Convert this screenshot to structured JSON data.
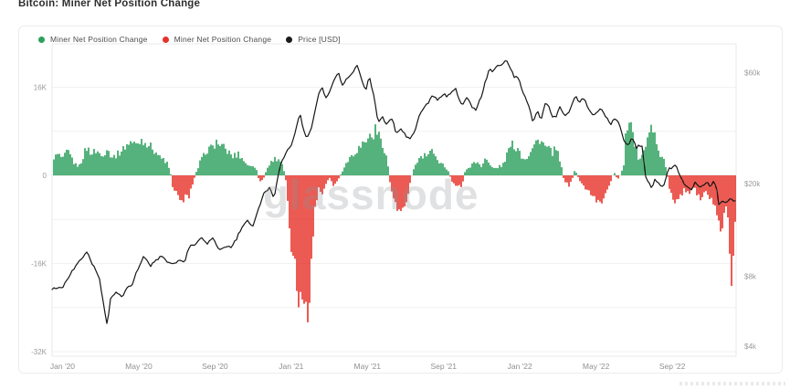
{
  "page": {
    "title": "Bitcoin: Miner Net Position Change"
  },
  "legend": [
    {
      "label": "Miner Net Position Change",
      "color": "#2ca05c"
    },
    {
      "label": "Miner Net Position Change",
      "color": "#e63329"
    },
    {
      "label": "Price [USD]",
      "color": "#1b1b1b"
    }
  ],
  "watermark": "glassnode",
  "chart_data": {
    "type": "combo-bar-line",
    "title": "Bitcoin: Miner Net Position Change",
    "x_unit": "months_since_2020_01",
    "x_axis": {
      "range_months": [
        -0.55,
        35.35
      ],
      "ticks": [
        {
          "m": 0,
          "label": "Jan '20"
        },
        {
          "m": 4,
          "label": "May '20"
        },
        {
          "m": 8,
          "label": "Sep '20"
        },
        {
          "m": 12,
          "label": "Jan '21"
        },
        {
          "m": 16,
          "label": "May '21"
        },
        {
          "m": 20,
          "label": "Sep '21"
        },
        {
          "m": 24,
          "label": "Jan '22"
        },
        {
          "m": 28,
          "label": "May '22"
        },
        {
          "m": 32,
          "label": "Sep '22"
        }
      ]
    },
    "y_left": {
      "unit": "BTC (thousands)",
      "gridline_step_k": 8,
      "range_k": [
        -33,
        24
      ],
      "ticks": [
        {
          "v": 16,
          "label": "16K"
        },
        {
          "v": 0,
          "label": "0"
        },
        {
          "v": -16,
          "label": "-16K"
        },
        {
          "v": -32,
          "label": "-32K"
        }
      ]
    },
    "y_right": {
      "unit": "USD",
      "scale": "log",
      "ticks": [
        {
          "usd_k": 60,
          "label": "$60k"
        },
        {
          "usd_k": 20,
          "label": "$20k"
        },
        {
          "usd_k": 8,
          "label": "$8k"
        },
        {
          "usd_k": 4,
          "label": "$4k"
        }
      ]
    },
    "series": [
      {
        "name": "Miner Net Position Change",
        "type": "bar",
        "unit": "K BTC",
        "color_positive": "#2ca05c",
        "color_negative": "#e63329",
        "points": [
          [
            -0.5,
            3.2
          ],
          [
            -0.3,
            3.8
          ],
          [
            0,
            3.0
          ],
          [
            0.2,
            4.5
          ],
          [
            0.4,
            3.5
          ],
          [
            0.6,
            2.0
          ],
          [
            0.8,
            1.5
          ],
          [
            1.0,
            3.0
          ],
          [
            1.2,
            5.0
          ],
          [
            1.5,
            4.0
          ],
          [
            1.8,
            4.5
          ],
          [
            2.0,
            3.5
          ],
          [
            2.3,
            4.8
          ],
          [
            2.6,
            3.2
          ],
          [
            2.9,
            4.0
          ],
          [
            3.2,
            5.0
          ],
          [
            3.5,
            6.2
          ],
          [
            3.8,
            5.5
          ],
          [
            4.1,
            6.5
          ],
          [
            4.4,
            5.8
          ],
          [
            4.7,
            5.0
          ],
          [
            5.0,
            3.5
          ],
          [
            5.2,
            3.0
          ],
          [
            5.4,
            2.5
          ],
          [
            5.6,
            1.0
          ],
          [
            5.75,
            -2.0
          ],
          [
            6.0,
            -3.5
          ],
          [
            6.3,
            -4.5
          ],
          [
            6.6,
            -3.8
          ],
          [
            6.8,
            -1.5
          ],
          [
            7.0,
            0.8
          ],
          [
            7.2,
            2.5
          ],
          [
            7.5,
            4.5
          ],
          [
            7.8,
            5.0
          ],
          [
            8.0,
            6.0
          ],
          [
            8.3,
            5.5
          ],
          [
            8.6,
            4.5
          ],
          [
            8.9,
            3.5
          ],
          [
            9.2,
            4.0
          ],
          [
            9.5,
            2.5
          ],
          [
            9.8,
            1.5
          ],
          [
            10.1,
            1.8
          ],
          [
            10.3,
            -1.2
          ],
          [
            10.5,
            -0.8
          ],
          [
            10.7,
            1.5
          ],
          [
            11.0,
            2.8
          ],
          [
            11.3,
            3.2
          ],
          [
            11.5,
            2.0
          ],
          [
            11.7,
            -1.0
          ],
          [
            11.85,
            -8.0
          ],
          [
            12.0,
            -13.0
          ],
          [
            12.2,
            -18.0
          ],
          [
            12.4,
            -22.0
          ],
          [
            12.6,
            -25.0
          ],
          [
            12.8,
            -28.0
          ],
          [
            12.95,
            -20.0
          ],
          [
            13.1,
            -12.0
          ],
          [
            13.25,
            -5.0
          ],
          [
            13.4,
            -2.5
          ],
          [
            13.6,
            -3.5
          ],
          [
            13.8,
            -1.5
          ],
          [
            14.0,
            -0.5
          ],
          [
            14.2,
            -2.0
          ],
          [
            14.4,
            -0.8
          ],
          [
            14.6,
            0.5
          ],
          [
            14.9,
            2.5
          ],
          [
            15.2,
            4.0
          ],
          [
            15.5,
            5.0
          ],
          [
            15.8,
            6.0
          ],
          [
            16.1,
            7.0
          ],
          [
            16.4,
            8.2
          ],
          [
            16.7,
            6.5
          ],
          [
            17.0,
            3.0
          ],
          [
            17.2,
            -2.5
          ],
          [
            17.4,
            -5.0
          ],
          [
            17.7,
            -6.5
          ],
          [
            18.0,
            -4.5
          ],
          [
            18.2,
            -1.5
          ],
          [
            18.4,
            1.5
          ],
          [
            18.7,
            3.0
          ],
          [
            19.0,
            3.5
          ],
          [
            19.3,
            4.3
          ],
          [
            19.6,
            3.0
          ],
          [
            19.9,
            2.2
          ],
          [
            20.2,
            1.0
          ],
          [
            20.4,
            -1.2
          ],
          [
            20.7,
            -1.8
          ],
          [
            20.9,
            -2.5
          ],
          [
            21.1,
            0.8
          ],
          [
            21.4,
            1.8
          ],
          [
            21.7,
            2.5
          ],
          [
            22.0,
            1.5
          ],
          [
            22.1,
            3.5
          ],
          [
            22.4,
            1.8
          ],
          [
            22.7,
            1.2
          ],
          [
            23.1,
            2.0
          ],
          [
            23.5,
            5.6
          ],
          [
            23.9,
            5.0
          ],
          [
            24.1,
            3.0
          ],
          [
            24.3,
            3.2
          ],
          [
            24.6,
            4.8
          ],
          [
            25.0,
            6.8
          ],
          [
            25.3,
            5.2
          ],
          [
            25.6,
            4.2
          ],
          [
            25.9,
            4.6
          ],
          [
            26.1,
            2.2
          ],
          [
            26.3,
            -1.4
          ],
          [
            26.6,
            -1.8
          ],
          [
            26.85,
            0.9
          ],
          [
            27.1,
            -0.8
          ],
          [
            27.5,
            -2.8
          ],
          [
            28.0,
            -4.6
          ],
          [
            28.3,
            -4.6
          ],
          [
            28.55,
            -2.8
          ],
          [
            28.75,
            -1.0
          ],
          [
            28.9,
            0.7
          ],
          [
            29.1,
            -0.9
          ],
          [
            29.3,
            0.6
          ],
          [
            29.45,
            2.2
          ],
          [
            29.55,
            9.4
          ],
          [
            29.8,
            8.6
          ],
          [
            30.0,
            5.0
          ],
          [
            30.2,
            3.2
          ],
          [
            30.4,
            4.5
          ],
          [
            30.6,
            5.5
          ],
          [
            30.9,
            9.6
          ],
          [
            31.05,
            7.0
          ],
          [
            31.2,
            4.0
          ],
          [
            31.45,
            3.5
          ],
          [
            31.65,
            1.2
          ],
          [
            31.85,
            -3.0
          ],
          [
            32.1,
            -5.8
          ],
          [
            32.35,
            -4.2
          ],
          [
            32.6,
            -2.2
          ],
          [
            32.85,
            -3.6
          ],
          [
            33.1,
            -2.0
          ],
          [
            33.45,
            -4.4
          ],
          [
            33.7,
            -2.6
          ],
          [
            34.0,
            -4.2
          ],
          [
            34.3,
            -6.2
          ],
          [
            34.55,
            -9.6
          ],
          [
            34.75,
            -5.2
          ],
          [
            34.9,
            -7.0
          ],
          [
            35.05,
            -18.5
          ],
          [
            35.25,
            -9.0
          ],
          [
            35.35,
            -4.0
          ]
        ]
      },
      {
        "name": "Price [USD]",
        "type": "line",
        "unit": "USD (thousands)",
        "color": "#161616",
        "points": [
          [
            -0.5,
            7.1
          ],
          [
            0,
            7.2
          ],
          [
            0.5,
            8.4
          ],
          [
            0.9,
            9.3
          ],
          [
            1.3,
            10.2
          ],
          [
            1.6,
            8.9
          ],
          [
            1.9,
            8.0
          ],
          [
            2.2,
            5.8
          ],
          [
            2.35,
            4.8
          ],
          [
            2.5,
            6.4
          ],
          [
            2.8,
            6.8
          ],
          [
            3.1,
            6.5
          ],
          [
            3.4,
            7.1
          ],
          [
            3.7,
            7.5
          ],
          [
            4.0,
            8.8
          ],
          [
            4.3,
            9.8
          ],
          [
            4.6,
            8.8
          ],
          [
            4.9,
            9.4
          ],
          [
            5.2,
            9.7
          ],
          [
            5.5,
            9.3
          ],
          [
            5.8,
            9.1
          ],
          [
            6.1,
            9.3
          ],
          [
            6.4,
            9.2
          ],
          [
            6.7,
            11.0
          ],
          [
            7.0,
            10.9
          ],
          [
            7.3,
            11.8
          ],
          [
            7.6,
            11.1
          ],
          [
            7.9,
            11.7
          ],
          [
            8.2,
            10.3
          ],
          [
            8.5,
            10.8
          ],
          [
            8.8,
            10.6
          ],
          [
            9.1,
            11.4
          ],
          [
            9.4,
            13.0
          ],
          [
            9.7,
            13.8
          ],
          [
            10.0,
            13.1
          ],
          [
            10.3,
            15.6
          ],
          [
            10.6,
            18.4
          ],
          [
            10.9,
            19.2
          ],
          [
            11.1,
            17.2
          ],
          [
            11.4,
            23.5
          ],
          [
            11.7,
            27.0
          ],
          [
            12.0,
            29.0
          ],
          [
            12.2,
            33.0
          ],
          [
            12.45,
            40.0
          ],
          [
            12.6,
            35.5
          ],
          [
            12.8,
            31.0
          ],
          [
            13.0,
            33.5
          ],
          [
            13.2,
            38.5
          ],
          [
            13.4,
            47.5
          ],
          [
            13.6,
            52.0
          ],
          [
            13.8,
            46.5
          ],
          [
            14.0,
            49.0
          ],
          [
            14.3,
            57.0
          ],
          [
            14.5,
            59.0
          ],
          [
            14.7,
            52.5
          ],
          [
            14.9,
            56.0
          ],
          [
            15.2,
            60.0
          ],
          [
            15.45,
            64.0
          ],
          [
            15.7,
            56.0
          ],
          [
            15.9,
            50.0
          ],
          [
            16.1,
            57.5
          ],
          [
            16.4,
            45.0
          ],
          [
            16.55,
            37.0
          ],
          [
            16.8,
            38.5
          ],
          [
            17.0,
            36.0
          ],
          [
            17.3,
            38.0
          ],
          [
            17.5,
            33.0
          ],
          [
            17.8,
            34.5
          ],
          [
            18.0,
            32.0
          ],
          [
            18.2,
            31.0
          ],
          [
            18.5,
            34.0
          ],
          [
            18.8,
            40.5
          ],
          [
            19.1,
            43.5
          ],
          [
            19.4,
            47.5
          ],
          [
            19.7,
            45.5
          ],
          [
            20.0,
            48.5
          ],
          [
            20.2,
            47.0
          ],
          [
            20.4,
            49.5
          ],
          [
            20.6,
            51.5
          ],
          [
            20.8,
            46.5
          ],
          [
            21.0,
            43.5
          ],
          [
            21.2,
            47.5
          ],
          [
            21.5,
            42.5
          ],
          [
            21.7,
            41.0
          ],
          [
            22.0,
            48.0
          ],
          [
            22.2,
            55.0
          ],
          [
            22.4,
            61.5
          ],
          [
            22.6,
            60.5
          ],
          [
            22.8,
            63.5
          ],
          [
            23.1,
            65.5
          ],
          [
            23.3,
            67.5
          ],
          [
            23.5,
            63.0
          ],
          [
            23.7,
            57.0
          ],
          [
            23.9,
            57.5
          ],
          [
            24.1,
            50.5
          ],
          [
            24.3,
            46.5
          ],
          [
            24.5,
            42.0
          ],
          [
            24.7,
            36.5
          ],
          [
            24.9,
            41.5
          ],
          [
            25.1,
            37.0
          ],
          [
            25.3,
            44.0
          ],
          [
            25.5,
            43.5
          ],
          [
            25.7,
            39.0
          ],
          [
            25.9,
            38.5
          ],
          [
            26.1,
            43.0
          ],
          [
            26.4,
            38.5
          ],
          [
            26.7,
            42.5
          ],
          [
            26.9,
            47.5
          ],
          [
            27.1,
            45.0
          ],
          [
            27.4,
            46.5
          ],
          [
            27.6,
            42.0
          ],
          [
            27.8,
            39.5
          ],
          [
            28.0,
            40.0
          ],
          [
            28.3,
            42.0
          ],
          [
            28.5,
            38.5
          ],
          [
            28.8,
            36.0
          ],
          [
            29.0,
            38.5
          ],
          [
            29.3,
            34.5
          ],
          [
            29.5,
            30.0
          ],
          [
            29.7,
            29.0
          ],
          [
            29.9,
            31.5
          ],
          [
            30.1,
            28.5
          ],
          [
            30.4,
            29.5
          ],
          [
            30.6,
            21.5
          ],
          [
            30.9,
            19.0
          ],
          [
            31.1,
            21.0
          ],
          [
            31.3,
            20.0
          ],
          [
            31.55,
            19.3
          ],
          [
            31.8,
            23.0
          ],
          [
            32.0,
            23.3
          ],
          [
            32.2,
            24.0
          ],
          [
            32.4,
            21.5
          ],
          [
            32.6,
            20.0
          ],
          [
            32.8,
            19.5
          ],
          [
            33.0,
            18.8
          ],
          [
            33.2,
            20.2
          ],
          [
            33.4,
            19.2
          ],
          [
            33.6,
            19.5
          ],
          [
            33.8,
            20.5
          ],
          [
            34.0,
            19.1
          ],
          [
            34.2,
            20.8
          ],
          [
            34.35,
            18.5
          ],
          [
            34.45,
            16.0
          ],
          [
            34.6,
            16.8
          ],
          [
            34.8,
            16.5
          ],
          [
            35.0,
            17.2
          ],
          [
            35.3,
            16.9
          ]
        ]
      }
    ],
    "legend_position": "top-left",
    "grid": true
  }
}
